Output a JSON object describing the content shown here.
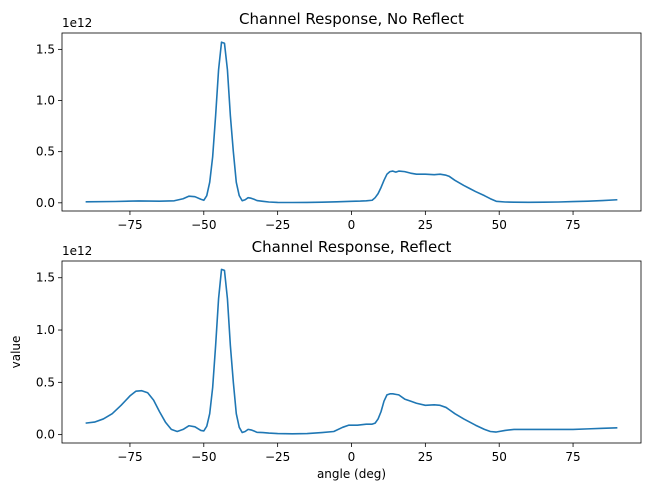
{
  "chart_data": [
    {
      "type": "line",
      "title": "Channel Response, No Reflect",
      "xlabel": "",
      "ylabel": "",
      "y_offset_label": "1e12",
      "xlim": [
        -98,
        98
      ],
      "ylim": [
        -0.08,
        1.66
      ],
      "xticks": [
        -75,
        -50,
        -25,
        0,
        25,
        50,
        75
      ],
      "yticks": [
        0.0,
        0.5,
        1.0,
        1.5
      ],
      "xtick_labels": [
        "−75",
        "−50",
        "−25",
        "0",
        "25",
        "50",
        "75"
      ],
      "ytick_labels": [
        "0.0",
        "0.5",
        "1.0",
        "1.5"
      ],
      "line_color": "#1f77b4",
      "x": [
        -90,
        -80,
        -72,
        -65,
        -60,
        -57,
        -55,
        -53,
        -51,
        -50,
        -49,
        -48,
        -47,
        -46,
        -45,
        -44,
        -43,
        -42,
        -41,
        -40,
        -39,
        -38,
        -37,
        -36,
        -35,
        -34,
        -33,
        -32,
        -30,
        -28,
        -25,
        -20,
        -15,
        -10,
        -5,
        0,
        3,
        5,
        7,
        8,
        9,
        10,
        11,
        12,
        13,
        14,
        15,
        16,
        18,
        20,
        22,
        25,
        28,
        30,
        32,
        33,
        35,
        38,
        40,
        42,
        45,
        47,
        49,
        52,
        55,
        60,
        65,
        70,
        75,
        80,
        85,
        90
      ],
      "y": [
        0.01,
        0.013,
        0.018,
        0.016,
        0.02,
        0.04,
        0.065,
        0.06,
        0.035,
        0.025,
        0.07,
        0.2,
        0.45,
        0.85,
        1.3,
        1.57,
        1.56,
        1.3,
        0.85,
        0.5,
        0.2,
        0.07,
        0.02,
        0.03,
        0.05,
        0.045,
        0.035,
        0.022,
        0.015,
        0.008,
        0.004,
        0.003,
        0.004,
        0.006,
        0.01,
        0.015,
        0.017,
        0.02,
        0.025,
        0.05,
        0.09,
        0.15,
        0.22,
        0.28,
        0.305,
        0.31,
        0.3,
        0.31,
        0.305,
        0.29,
        0.28,
        0.28,
        0.275,
        0.28,
        0.27,
        0.26,
        0.22,
        0.17,
        0.14,
        0.11,
        0.07,
        0.04,
        0.015,
        0.008,
        0.006,
        0.005,
        0.006,
        0.008,
        0.012,
        0.016,
        0.022,
        0.03
      ]
    },
    {
      "type": "line",
      "title": "Channel Response, Reflect",
      "xlabel": "angle (deg)",
      "ylabel": "value",
      "y_offset_label": "1e12",
      "xlim": [
        -98,
        98
      ],
      "ylim": [
        -0.08,
        1.66
      ],
      "xticks": [
        -75,
        -50,
        -25,
        0,
        25,
        50,
        75
      ],
      "yticks": [
        0.0,
        0.5,
        1.0,
        1.5
      ],
      "xtick_labels": [
        "−75",
        "−50",
        "−25",
        "0",
        "25",
        "50",
        "75"
      ],
      "ytick_labels": [
        "0.0",
        "0.5",
        "1.0",
        "1.5"
      ],
      "line_color": "#1f77b4",
      "x": [
        -90,
        -87,
        -84,
        -81,
        -78,
        -75,
        -73,
        -71,
        -69,
        -67,
        -65,
        -63,
        -61,
        -59,
        -57,
        -55,
        -53,
        -51,
        -50,
        -49,
        -48,
        -47,
        -46,
        -45,
        -44,
        -43,
        -42,
        -41,
        -40,
        -39,
        -38,
        -37,
        -36,
        -35,
        -34,
        -33,
        -32,
        -30,
        -28,
        -25,
        -20,
        -15,
        -10,
        -6,
        -3,
        -1,
        0,
        2,
        5,
        7,
        8,
        9,
        10,
        11,
        12,
        13,
        14,
        15,
        16,
        18,
        20,
        22,
        25,
        28,
        30,
        32,
        33,
        35,
        38,
        40,
        42,
        45,
        47,
        49,
        52,
        55,
        60,
        65,
        70,
        75,
        80,
        85,
        90
      ],
      "y": [
        0.11,
        0.12,
        0.15,
        0.2,
        0.28,
        0.37,
        0.415,
        0.42,
        0.4,
        0.33,
        0.22,
        0.12,
        0.05,
        0.03,
        0.05,
        0.085,
        0.075,
        0.04,
        0.035,
        0.08,
        0.2,
        0.45,
        0.85,
        1.3,
        1.58,
        1.57,
        1.3,
        0.85,
        0.5,
        0.2,
        0.07,
        0.02,
        0.03,
        0.05,
        0.045,
        0.035,
        0.022,
        0.02,
        0.015,
        0.01,
        0.008,
        0.01,
        0.02,
        0.03,
        0.07,
        0.09,
        0.09,
        0.09,
        0.1,
        0.1,
        0.11,
        0.15,
        0.22,
        0.32,
        0.38,
        0.39,
        0.39,
        0.385,
        0.38,
        0.34,
        0.32,
        0.3,
        0.28,
        0.285,
        0.28,
        0.26,
        0.24,
        0.2,
        0.15,
        0.12,
        0.09,
        0.05,
        0.03,
        0.025,
        0.04,
        0.05,
        0.05,
        0.05,
        0.05,
        0.05,
        0.055,
        0.06,
        0.065
      ]
    }
  ]
}
